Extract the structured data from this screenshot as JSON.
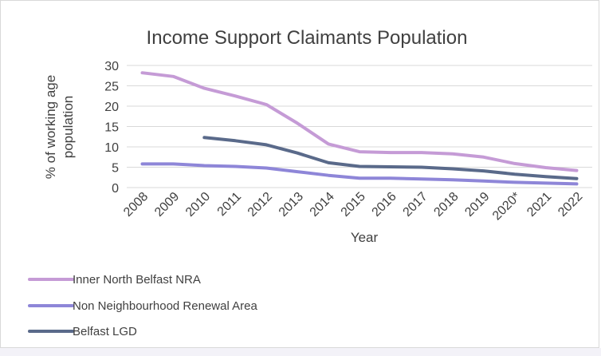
{
  "chart_data": {
    "type": "line",
    "title": "Income Support Claimants Population",
    "xlabel": "Year",
    "ylabel": "% of working age population",
    "ylabel_lines": [
      "% of working age",
      "population"
    ],
    "ylim": [
      0,
      30
    ],
    "yticks": [
      0,
      5,
      10,
      15,
      20,
      25,
      30
    ],
    "grid": true,
    "legend_position": "bottom",
    "categories": [
      "2008",
      "2009",
      "2010",
      "2011",
      "2012",
      "2013",
      "2014",
      "2015",
      "2016",
      "2017",
      "2018",
      "2019",
      "2020*",
      "2021",
      "2022"
    ],
    "series": [
      {
        "name": "Inner North Belfast NRA",
        "color": "#c59bd6",
        "values": [
          28.2,
          27.3,
          24.4,
          22.5,
          20.4,
          15.8,
          10.7,
          8.8,
          8.6,
          8.6,
          8.3,
          7.5,
          5.9,
          4.9,
          4.2
        ]
      },
      {
        "name": "Non Neighbourhood Renewal Area",
        "color": "#8e86d8",
        "values": [
          5.8,
          5.8,
          5.4,
          5.2,
          4.8,
          3.9,
          3.0,
          2.3,
          2.3,
          2.1,
          1.9,
          1.6,
          1.3,
          1.1,
          0.9
        ]
      },
      {
        "name": "Belfast LGD",
        "color": "#5a6a8a",
        "values": [
          null,
          null,
          12.3,
          11.5,
          10.5,
          8.5,
          6.1,
          5.2,
          5.1,
          5.0,
          4.6,
          4.1,
          3.3,
          2.7,
          2.2
        ]
      }
    ]
  }
}
